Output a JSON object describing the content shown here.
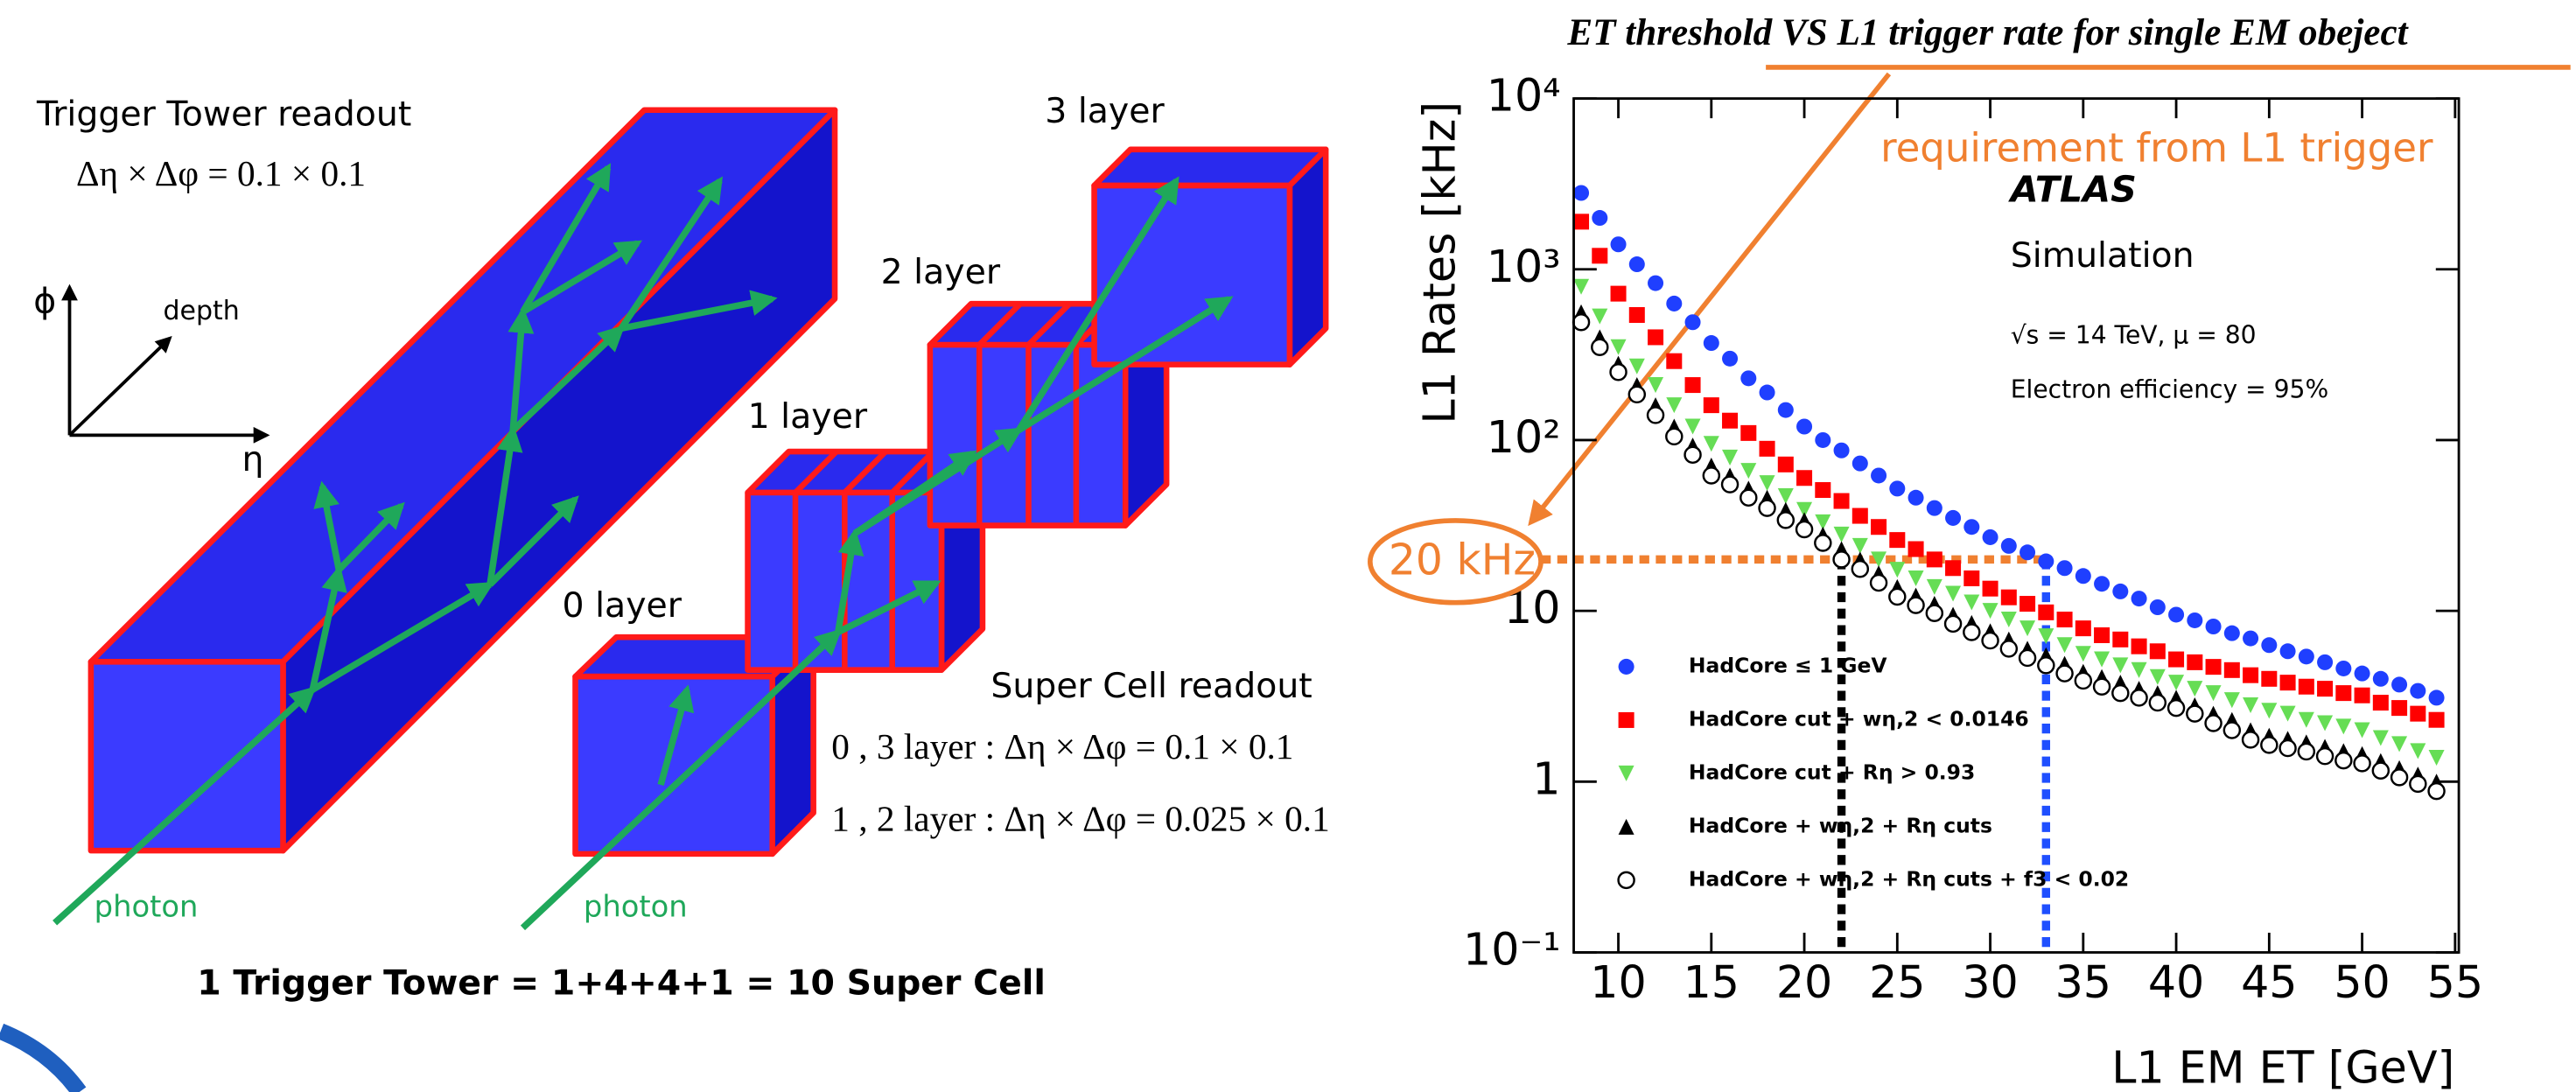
{
  "diagram": {
    "tower_title": "Trigger Tower readout",
    "tower_granularity": "Δη × Δφ = 0.1 × 0.1",
    "axis_phi": "ϕ",
    "axis_depth": "depth",
    "axis_eta": "η",
    "layers": [
      "0 layer",
      "1 layer",
      "2 layer",
      "3 layer"
    ],
    "supercell_title": "Super Cell readout",
    "supercell_03": "0 , 3 layer : Δη × Δφ = 0.1 × 0.1",
    "supercell_12": "1 , 2 layer : Δη × Δφ = 0.025 × 0.1",
    "photon_labels": [
      "photon",
      "photon"
    ],
    "summary": "1 Trigger Tower = 1+4+4+1 = 10 Super Cell"
  },
  "chart_data": {
    "type": "scatter",
    "title": "ET threshold VS L1 trigger rate for single EM obeject",
    "x_label": "L1 EM ET [GeV]",
    "y_label": "L1 Rates [kHz]",
    "annotations": [
      "ATLAS",
      "Simulation",
      "√s = 14 TeV, μ = 80",
      "Electron efficiency = 95%"
    ],
    "requirement_label": "requirement from L1 trigger",
    "threshold": {
      "value": 20,
      "label": "20 kHz",
      "color": "#f08030"
    },
    "vlines": [
      {
        "value": 22,
        "color": "#000000"
      },
      {
        "value": 33,
        "color": "#1f4fff"
      }
    ],
    "log_y": true,
    "xlim": [
      7.6,
      55.2
    ],
    "ylim": [
      0.1,
      10000
    ],
    "xticks": [
      10,
      15,
      20,
      25,
      30,
      35,
      40,
      45,
      50,
      55
    ],
    "yticks": [
      {
        "value": 0.1,
        "label": "10⁻¹"
      },
      1,
      10,
      {
        "value": 100,
        "label": "10²"
      },
      {
        "value": 1000,
        "label": "10³"
      },
      {
        "value": 10000,
        "label": "10⁴"
      }
    ],
    "x": [
      8,
      9,
      10,
      11,
      12,
      13,
      14,
      15,
      16,
      17,
      18,
      19,
      20,
      21,
      22,
      23,
      24,
      25,
      26,
      27,
      28,
      29,
      30,
      31,
      32,
      33,
      34,
      35,
      36,
      37,
      38,
      39,
      40,
      41,
      42,
      43,
      44,
      45,
      46,
      47,
      48,
      49,
      50,
      51,
      52,
      53,
      54
    ],
    "series": [
      {
        "name": "HadCore ≤ 1 GeV",
        "color": "#1f3fff",
        "marker": "circle",
        "values": [
          2800,
          2000,
          1400,
          1070,
          830,
          630,
          490,
          370,
          300,
          230,
          190,
          150,
          120,
          100,
          87,
          73,
          62,
          52,
          46,
          40,
          35,
          31,
          27,
          24,
          22,
          19.5,
          17.8,
          16,
          14.4,
          13,
          11.8,
          10.5,
          9.5,
          8.8,
          8.1,
          7.4,
          6.9,
          6.3,
          5.8,
          5.4,
          5.0,
          4.6,
          4.3,
          4.0,
          3.7,
          3.4,
          3.1
        ]
      },
      {
        "name": "HadCore cut + wη,2 < 0.0146",
        "color": "#ff0000",
        "marker": "square",
        "values": [
          1900,
          1200,
          720,
          540,
          400,
          290,
          210,
          160,
          130,
          110,
          89,
          72,
          60,
          51,
          44,
          36,
          31,
          26,
          23,
          20,
          17.8,
          15.5,
          13.5,
          12,
          11,
          9.8,
          8.9,
          7.9,
          7.2,
          6.8,
          6.2,
          5.8,
          5.2,
          5.0,
          4.7,
          4.5,
          4.2,
          4.0,
          3.8,
          3.6,
          3.5,
          3.3,
          3.2,
          2.9,
          2.7,
          2.5,
          2.3
        ]
      },
      {
        "name": "HadCore cut + Rη > 0.93",
        "color": "#66dd55",
        "marker": "triangle-down",
        "values": [
          790,
          530,
          350,
          270,
          210,
          160,
          120,
          95,
          79,
          66,
          56,
          47,
          39,
          33,
          28,
          24,
          20,
          17.4,
          15.5,
          13.8,
          12.6,
          11.2,
          10,
          8.9,
          7.9,
          7.1,
          6.3,
          5.6,
          5.2,
          4.8,
          4.5,
          4.1,
          3.8,
          3.5,
          3.3,
          3.0,
          2.8,
          2.6,
          2.5,
          2.3,
          2.2,
          2.1,
          2.0,
          1.8,
          1.66,
          1.51,
          1.38
        ]
      },
      {
        "name": "HadCore + wη,2 + Rη cuts",
        "color": "#000000",
        "marker": "triangle-up",
        "values": [
          560,
          400,
          280,
          210,
          160,
          120,
          93,
          71,
          62,
          52,
          46,
          39,
          34,
          28,
          23,
          20,
          16.6,
          13.8,
          12.3,
          11,
          9.5,
          8.5,
          7.6,
          6.8,
          6.0,
          5.5,
          4.9,
          4.4,
          4.1,
          3.8,
          3.5,
          3.3,
          3.1,
          2.8,
          2.5,
          2.3,
          2.0,
          1.86,
          1.78,
          1.7,
          1.6,
          1.51,
          1.45,
          1.32,
          1.2,
          1.1,
          1.0
        ]
      },
      {
        "name": "HadCore + wη,2 + Rη cuts + f3 < 0.02",
        "color": "#000000",
        "marker": "open-circle",
        "values": [
          490,
          350,
          250,
          185,
          140,
          105,
          82,
          62,
          55,
          46,
          40,
          34,
          30,
          25,
          20,
          17.6,
          14.6,
          12.1,
          10.8,
          9.7,
          8.4,
          7.5,
          6.7,
          6.0,
          5.3,
          4.8,
          4.3,
          3.9,
          3.6,
          3.3,
          3.1,
          2.9,
          2.7,
          2.5,
          2.2,
          2.0,
          1.76,
          1.64,
          1.57,
          1.5,
          1.41,
          1.33,
          1.28,
          1.16,
          1.06,
          0.97,
          0.88
        ]
      }
    ]
  }
}
